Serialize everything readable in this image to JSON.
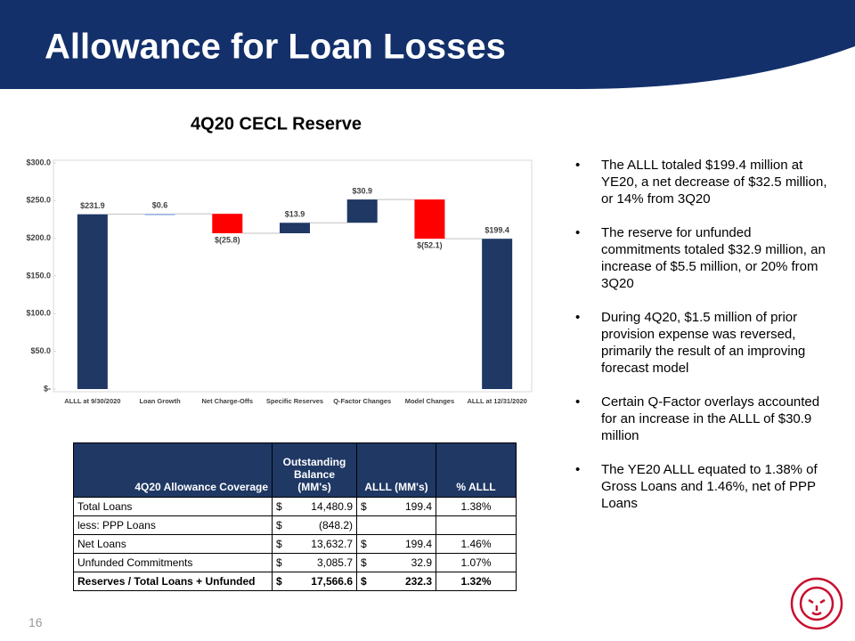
{
  "header": {
    "title": "Allowance for Loan Losses"
  },
  "chart_data": {
    "type": "waterfall",
    "title": "4Q20 CECL Reserve",
    "categories": [
      "ALLL at 9/30/2020",
      "Loan Growth",
      "Net Charge-Offs",
      "Specific Reserves",
      "Q-Factor Changes",
      "Model Changes",
      "ALLL at 12/31/2020"
    ],
    "values": [
      231.9,
      0.6,
      -25.8,
      13.9,
      30.9,
      -52.1,
      199.4
    ],
    "value_labels": [
      "$231.9",
      "$0.6",
      "$(25.8)",
      "$13.9",
      "$30.9",
      "$(52.1)",
      "$199.4"
    ],
    "is_total": [
      true,
      false,
      false,
      false,
      false,
      false,
      true
    ],
    "colors": [
      "#1f3864",
      "#8ea9db",
      "#ff0000",
      "#1f3864",
      "#1f3864",
      "#ff0000",
      "#1f3864"
    ],
    "ylim": [
      0,
      300
    ],
    "yticks": [
      {
        "value": 0,
        "label": "$-"
      },
      {
        "value": 50,
        "label": "$50.0"
      },
      {
        "value": 100,
        "label": "$100.0"
      },
      {
        "value": 150,
        "label": "$150.0"
      },
      {
        "value": 200,
        "label": "$200.0"
      },
      {
        "value": 250,
        "label": "$250.0"
      },
      {
        "value": 300,
        "label": "$300.0"
      }
    ],
    "grid": false
  },
  "table": {
    "header": [
      "4Q20 Allowance Coverage",
      "Outstanding Balance (MM's)",
      "ALLL (MM's)",
      "% ALLL"
    ],
    "rows": [
      [
        "Total Loans",
        "$",
        "14,480.9",
        "$",
        "199.4",
        "1.38%"
      ],
      [
        "less: PPP Loans",
        "$",
        "(848.2)",
        null,
        null,
        null
      ],
      [
        "Net Loans",
        "$",
        "13,632.7",
        "$",
        "199.4",
        "1.46%"
      ],
      [
        "Unfunded Commitments",
        "$",
        "3,085.7",
        "$",
        "32.9",
        "1.07%"
      ],
      [
        "Reserves / Total Loans + Unfunded",
        "$",
        "17,566.6",
        "$",
        "232.3",
        "1.32%"
      ]
    ]
  },
  "bullets": [
    "The ALLL totaled $199.4 million at YE20, a net decrease of $32.5 million, or 14% from 3Q20",
    "The reserve for unfunded commitments totaled $32.9 million, an increase of $5.5 million, or 20% from 3Q20",
    "During 4Q20, $1.5 million of prior provision expense was reversed, primarily the result of an improving forecast model",
    "Certain Q-Factor overlays accounted for an increase in the ALLL of $30.9 million",
    "The YE20 ALLL equated to 1.38% of Gross Loans and 1.46%, net of PPP Loans"
  ],
  "page_number": "16"
}
